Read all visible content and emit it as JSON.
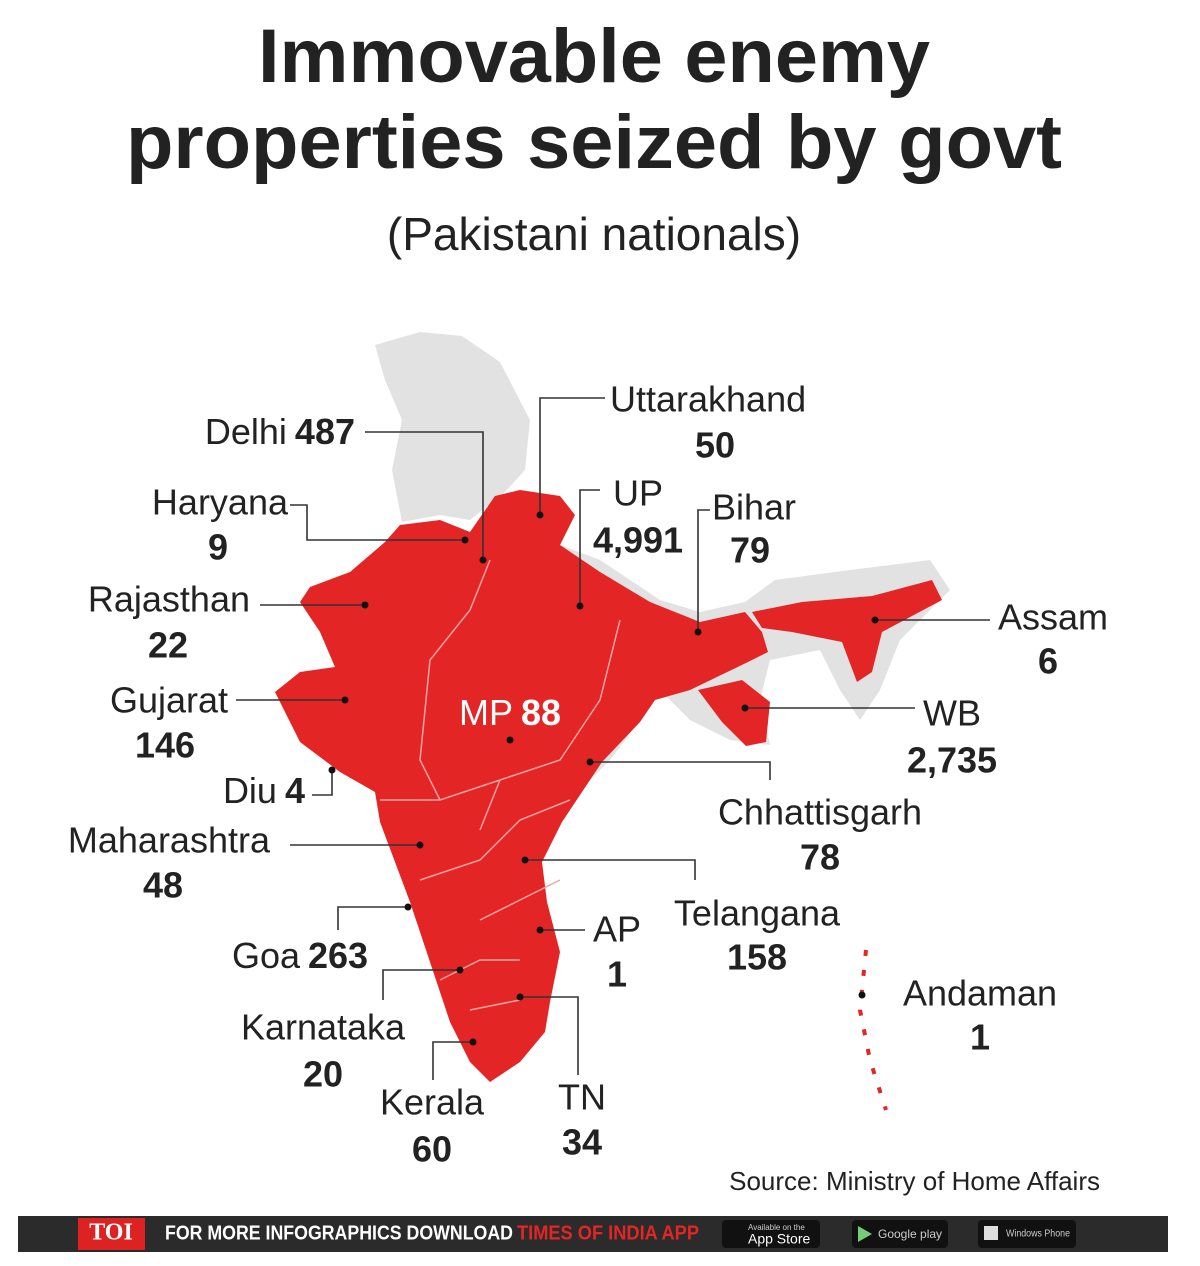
{
  "header": {
    "title_lines": [
      "Immovable enemy",
      "properties seized by govt"
    ],
    "subtitle": "(Pakistani nationals)"
  },
  "regions": [
    {
      "name": "Delhi",
      "value": 487
    },
    {
      "name": "Uttarakhand",
      "value": 50
    },
    {
      "name": "Haryana",
      "value": 9
    },
    {
      "name": "UP",
      "value": 4991,
      "value_label": "4,991"
    },
    {
      "name": "Bihar",
      "value": 79
    },
    {
      "name": "Rajasthan",
      "value": 22
    },
    {
      "name": "Assam",
      "value": 6
    },
    {
      "name": "Gujarat",
      "value": 146
    },
    {
      "name": "MP",
      "value": 88
    },
    {
      "name": "WB",
      "value": 2735,
      "value_label": "2,735"
    },
    {
      "name": "Diu",
      "value": 4
    },
    {
      "name": "Chhattisgarh",
      "value": 78
    },
    {
      "name": "Maharashtra",
      "value": 48
    },
    {
      "name": "Telangana",
      "value": 158
    },
    {
      "name": "Goa",
      "value": 263
    },
    {
      "name": "AP",
      "value": 1
    },
    {
      "name": "Karnataka",
      "value": 20
    },
    {
      "name": "Andaman",
      "value": 1
    },
    {
      "name": "Kerala",
      "value": 60
    },
    {
      "name": "TN",
      "value": 34
    }
  ],
  "source": "Source: Ministry of Home Affairs",
  "footer": {
    "brand": "TOI",
    "prompt": "FOR MORE INFOGRAPHICS DOWNLOAD",
    "app": "TIMES OF INDIA APP",
    "store_caption": "Available on the",
    "app_store": "App Store",
    "google_play": "Google play",
    "windows": "Windows Phone"
  }
}
